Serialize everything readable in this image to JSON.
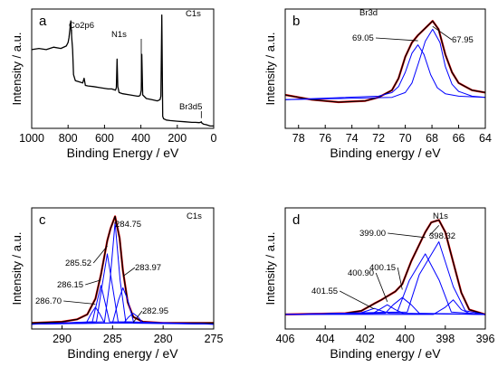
{
  "chart_data": [
    {
      "type": "line",
      "panel_label": "a",
      "xlabel": "Binding Energy / eV",
      "ylabel": "Intensity / a.u.",
      "xlim": [
        1000,
        0
      ],
      "x_reversed": true,
      "xticks": [
        "1000",
        "800",
        "600",
        "400",
        "200",
        "0"
      ],
      "yticks_shown": false,
      "series": [
        {
          "color": "#000000",
          "x": [
            1000,
            960,
            920,
            880,
            840,
            810,
            800,
            795,
            785,
            780,
            775,
            770,
            760,
            740,
            720,
            712,
            705,
            690,
            660,
            620,
            580,
            560,
            540,
            535,
            531,
            527,
            520,
            500,
            460,
            420,
            410,
            403,
            398,
            395,
            390,
            370,
            340,
            310,
            295,
            290,
            285,
            280,
            275,
            260,
            240,
            200,
            160,
            120,
            100,
            80,
            72,
            68,
            65,
            55,
            40,
            20,
            0
          ],
          "y": [
            0.66,
            0.67,
            0.66,
            0.68,
            0.67,
            0.69,
            0.72,
            0.76,
            0.9,
            0.76,
            0.66,
            0.45,
            0.4,
            0.39,
            0.38,
            0.42,
            0.36,
            0.355,
            0.35,
            0.34,
            0.33,
            0.33,
            0.32,
            0.34,
            0.58,
            0.35,
            0.3,
            0.29,
            0.28,
            0.27,
            0.27,
            0.28,
            0.32,
            0.62,
            0.28,
            0.25,
            0.24,
            0.23,
            0.24,
            0.27,
            0.95,
            0.1,
            0.08,
            0.07,
            0.065,
            0.06,
            0.055,
            0.05,
            0.05,
            0.048,
            0.05,
            0.055,
            0.045,
            0.035,
            0.03,
            0.02,
            0.02
          ]
        }
      ],
      "annotations": [
        {
          "text": "Co2p6",
          "x": 780
        },
        {
          "text": "N1s",
          "x": 398
        },
        {
          "text": "C1s",
          "x": 285
        },
        {
          "text": "Br3d5",
          "x": 68
        }
      ]
    },
    {
      "type": "line",
      "panel_label": "b",
      "title": "Br3d",
      "xlabel": "Binding energy / eV",
      "ylabel": "Intensity / a.u.",
      "xlim": [
        79,
        64
      ],
      "x_reversed": true,
      "xticks": [
        "78",
        "76",
        "74",
        "72",
        "70",
        "68",
        "66",
        "64"
      ],
      "yticks_shown": false,
      "series": [
        {
          "color": "#ff0000",
          "x": [
            79,
            77,
            75,
            73,
            72,
            71,
            70.5,
            70,
            69.5,
            69.05,
            68.5,
            67.95,
            67.5,
            67,
            66.5,
            66,
            65,
            64
          ],
          "y": [
            0.28,
            0.24,
            0.22,
            0.23,
            0.26,
            0.32,
            0.42,
            0.6,
            0.72,
            0.78,
            0.84,
            0.9,
            0.83,
            0.62,
            0.47,
            0.38,
            0.32,
            0.3
          ]
        },
        {
          "color": "#000000",
          "x": [
            79,
            77,
            75,
            73,
            72,
            71,
            70.5,
            70,
            69.5,
            69.05,
            68.5,
            67.95,
            67.5,
            67,
            66.5,
            66,
            65,
            64
          ],
          "y": [
            0.28,
            0.24,
            0.22,
            0.23,
            0.26,
            0.32,
            0.42,
            0.6,
            0.72,
            0.78,
            0.84,
            0.9,
            0.83,
            0.62,
            0.47,
            0.38,
            0.32,
            0.3
          ]
        },
        {
          "color": "#0000ff",
          "x": [
            79,
            72,
            71,
            70.5,
            70,
            69.5,
            69.05,
            68.6,
            68.1,
            67.6,
            67,
            66,
            64
          ],
          "y": [
            0.24,
            0.27,
            0.3,
            0.35,
            0.47,
            0.63,
            0.7,
            0.62,
            0.45,
            0.34,
            0.29,
            0.27,
            0.26
          ]
        },
        {
          "color": "#0000ff",
          "x": [
            79,
            71,
            70,
            69.5,
            69,
            68.5,
            67.95,
            67.4,
            67,
            66.5,
            66,
            65,
            64
          ],
          "y": [
            0.24,
            0.26,
            0.3,
            0.38,
            0.55,
            0.73,
            0.83,
            0.72,
            0.52,
            0.37,
            0.31,
            0.27,
            0.26
          ]
        }
      ],
      "annotations": [
        {
          "text": "69.05",
          "x": 69.05
        },
        {
          "text": "67.95",
          "x": 67.95
        }
      ]
    },
    {
      "type": "line",
      "panel_label": "c",
      "title": "C1s",
      "xlabel": "Binding energy / eV",
      "ylabel": "Intensity / a.u.",
      "xlim": [
        293,
        275
      ],
      "x_reversed": true,
      "xticks": [
        "290",
        "285",
        "280",
        "275"
      ],
      "yticks_shown": false,
      "series": [
        {
          "color": "#ff0000",
          "x": [
            293,
            290,
            288.5,
            287.5,
            286.7,
            286.15,
            285.52,
            285.2,
            284.75,
            284.3,
            283.97,
            283.5,
            282.95,
            282,
            280,
            275
          ],
          "y": [
            0.05,
            0.06,
            0.08,
            0.12,
            0.25,
            0.45,
            0.73,
            0.83,
            0.93,
            0.75,
            0.48,
            0.22,
            0.1,
            0.06,
            0.05,
            0.05
          ]
        },
        {
          "color": "#000000",
          "x": [
            293,
            290,
            288.5,
            287.5,
            286.7,
            286.15,
            285.52,
            285.2,
            284.75,
            284.3,
            283.97,
            283.5,
            282.95,
            282,
            280,
            275
          ],
          "y": [
            0.05,
            0.06,
            0.08,
            0.12,
            0.25,
            0.45,
            0.73,
            0.83,
            0.93,
            0.75,
            0.48,
            0.22,
            0.1,
            0.06,
            0.05,
            0.05
          ]
        },
        {
          "color": "#0000ff",
          "x": [
            293,
            285.8,
            285.25,
            284.75,
            284.25,
            283.7,
            275
          ],
          "y": [
            0.04,
            0.06,
            0.4,
            0.88,
            0.4,
            0.06,
            0.04
          ]
        },
        {
          "color": "#0000ff",
          "x": [
            293,
            286.6,
            286.05,
            285.52,
            285.0,
            284.45,
            275
          ],
          "y": [
            0.04,
            0.06,
            0.35,
            0.62,
            0.35,
            0.06,
            0.04
          ]
        },
        {
          "color": "#0000ff",
          "x": [
            293,
            287.0,
            286.55,
            286.15,
            285.75,
            285.3,
            275
          ],
          "y": [
            0.04,
            0.06,
            0.22,
            0.36,
            0.22,
            0.06,
            0.04
          ]
        },
        {
          "color": "#0000ff",
          "x": [
            293,
            287.6,
            287.1,
            286.7,
            286.3,
            285.8,
            275
          ],
          "y": [
            0.04,
            0.05,
            0.13,
            0.18,
            0.13,
            0.05,
            0.04
          ]
        },
        {
          "color": "#0000ff",
          "x": [
            293,
            285.0,
            284.4,
            283.97,
            283.5,
            282.9,
            275
          ],
          "y": [
            0.04,
            0.05,
            0.24,
            0.34,
            0.24,
            0.05,
            0.04
          ]
        },
        {
          "color": "#0000ff",
          "x": [
            293,
            283.9,
            283.4,
            282.95,
            282.5,
            282.0,
            275
          ],
          "y": [
            0.04,
            0.05,
            0.1,
            0.13,
            0.1,
            0.05,
            0.04
          ]
        }
      ],
      "annotations": [
        {
          "text": "284.75",
          "x": 284.75
        },
        {
          "text": "285.52",
          "x": 285.52
        },
        {
          "text": "283.97",
          "x": 283.97
        },
        {
          "text": "286.15",
          "x": 286.15
        },
        {
          "text": "286.70",
          "x": 286.7
        },
        {
          "text": "282.95",
          "x": 282.95
        }
      ]
    },
    {
      "type": "line",
      "panel_label": "d",
      "title": "N1s",
      "xlabel": "Binding energy / eV",
      "ylabel": "Intensity / a.u.",
      "xlim": [
        406,
        396
      ],
      "x_reversed": true,
      "xticks": [
        "406",
        "404",
        "402",
        "400",
        "398",
        "396"
      ],
      "yticks_shown": false,
      "series": [
        {
          "color": "#ff0000",
          "x": [
            406,
            403,
            402.2,
            401.55,
            401.2,
            400.9,
            400.5,
            400.15,
            399.7,
            399.0,
            398.7,
            398.32,
            398.0,
            397.6,
            397.2,
            396.8,
            396
          ],
          "y": [
            0.12,
            0.13,
            0.15,
            0.21,
            0.24,
            0.27,
            0.31,
            0.37,
            0.56,
            0.8,
            0.88,
            0.9,
            0.8,
            0.55,
            0.3,
            0.16,
            0.12
          ]
        },
        {
          "color": "#000000",
          "x": [
            406,
            403,
            402.2,
            401.55,
            401.2,
            400.9,
            400.5,
            400.15,
            399.7,
            399.0,
            398.7,
            398.32,
            398.0,
            397.6,
            397.2,
            396.8,
            396
          ],
          "y": [
            0.12,
            0.13,
            0.15,
            0.21,
            0.24,
            0.27,
            0.31,
            0.37,
            0.56,
            0.8,
            0.88,
            0.9,
            0.8,
            0.55,
            0.3,
            0.16,
            0.12
          ]
        },
        {
          "color": "#0000ff",
          "x": [
            406,
            398.6,
            398.0,
            397.6,
            397.2,
            396.8,
            396
          ],
          "y": [
            0.12,
            0.12,
            0.18,
            0.24,
            0.16,
            0.13,
            0.12
          ]
        },
        {
          "color": "#0000ff",
          "x": [
            406,
            399.9,
            399.3,
            398.32,
            397.6,
            397.0,
            396
          ],
          "y": [
            0.12,
            0.14,
            0.45,
            0.72,
            0.35,
            0.15,
            0.12
          ]
        },
        {
          "color": "#0000ff",
          "x": [
            406,
            400.4,
            399.8,
            399.0,
            398.3,
            397.7,
            396
          ],
          "y": [
            0.12,
            0.14,
            0.4,
            0.62,
            0.4,
            0.14,
            0.12
          ]
        },
        {
          "color": "#0000ff",
          "x": [
            406,
            401.0,
            400.6,
            400.15,
            399.7,
            399.3,
            396
          ],
          "y": [
            0.12,
            0.13,
            0.2,
            0.26,
            0.2,
            0.13,
            0.12
          ]
        },
        {
          "color": "#0000ff",
          "x": [
            406,
            401.6,
            401.2,
            400.9,
            400.5,
            400.1,
            396
          ],
          "y": [
            0.12,
            0.13,
            0.17,
            0.2,
            0.16,
            0.13,
            0.12
          ]
        },
        {
          "color": "#0000ff",
          "x": [
            406,
            402.3,
            401.9,
            401.55,
            401.2,
            400.8,
            396
          ],
          "y": [
            0.12,
            0.13,
            0.15,
            0.17,
            0.15,
            0.13,
            0.12
          ]
        }
      ],
      "annotations": [
        {
          "text": "399.00",
          "x": 399.0
        },
        {
          "text": "398.32",
          "x": 398.32
        },
        {
          "text": "400.90",
          "x": 400.9
        },
        {
          "text": "400.15",
          "x": 400.15
        },
        {
          "text": "401.55",
          "x": 401.55
        }
      ]
    }
  ]
}
